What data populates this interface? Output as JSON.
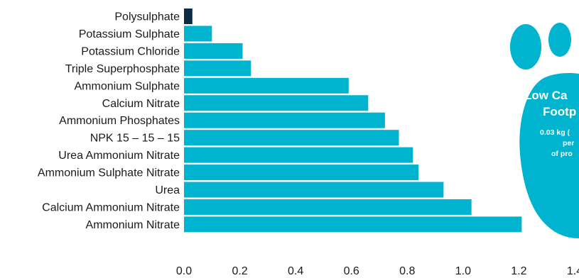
{
  "chart_data": {
    "type": "bar",
    "orientation": "horizontal",
    "categories": [
      "Polysulphate",
      "Potassium Sulphate",
      "Potassium Chloride",
      "Triple Superphosphate",
      "Ammonium Sulphate",
      "Calcium Nitrate",
      "Ammonium Phosphates",
      "NPK 15 – 15 – 15",
      "Urea Ammonium Nitrate",
      "Ammonium Sulphate Nitrate",
      "Urea",
      "Calcium Ammonium Nitrate",
      "Ammonium Nitrate"
    ],
    "values": [
      0.03,
      0.1,
      0.21,
      0.24,
      0.59,
      0.66,
      0.72,
      0.77,
      0.82,
      0.84,
      0.93,
      1.03,
      1.21
    ],
    "xlim": [
      0,
      1.4
    ],
    "xticks": [
      "0.0",
      "0.2",
      "0.4",
      "0.6",
      "0.8",
      "1.0",
      "1.2",
      "1.4"
    ],
    "highlight_category": "Polysulphate",
    "grid": false,
    "colors": {
      "bar": "#00b4cf",
      "highlight": "#0d2b45"
    }
  },
  "annotation": {
    "title_line1": "Low Ca",
    "title_line2": "Footp",
    "sub_line1": "0.03 kg (",
    "sub_line2": "per",
    "sub_line3": "of pro",
    "icon": "footprint-icon",
    "color": "#00b4cf"
  }
}
